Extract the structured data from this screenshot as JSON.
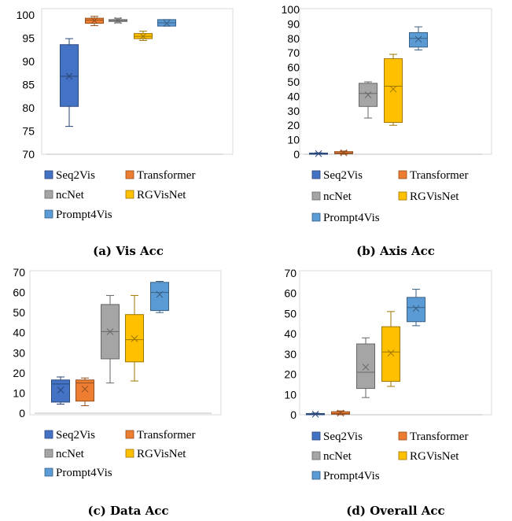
{
  "colors": {
    "Seq2Vis": "#4472c4",
    "Transformer": "#ed7d31",
    "ncNet": "#a5a5a5",
    "RGVisNet": "#ffc000",
    "Prompt4Vis": "#5b9bd5"
  },
  "chart_data": [
    {
      "type": "box",
      "caption": "(a) Vis Acc",
      "ylim": [
        70,
        100
      ],
      "yticks": [
        "70",
        "75",
        "80",
        "85",
        "90",
        "95",
        "100"
      ],
      "legend": [
        "Seq2Vis",
        "Transformer",
        "ncNet",
        "RGVisNet",
        "Prompt4Vis"
      ],
      "series": [
        {
          "name": "Seq2Vis",
          "min": 76,
          "q1": 80.3,
          "median": 86.8,
          "mean": 86.8,
          "q3": 93.6,
          "max": 94.9
        },
        {
          "name": "Transformer",
          "min": 97.7,
          "q1": 98.2,
          "median": 98.9,
          "mean": 98.8,
          "q3": 99.3,
          "max": 99.7
        },
        {
          "name": "ncNet",
          "min": 98.3,
          "q1": 98.6,
          "median": 98.8,
          "mean": 98.8,
          "q3": 99.0,
          "max": 99.3
        },
        {
          "name": "RGVisNet",
          "min": 94.5,
          "q1": 94.9,
          "median": 95.4,
          "mean": 95.4,
          "q3": 96.0,
          "max": 96.5
        },
        {
          "name": "Prompt4Vis",
          "min": 97.6,
          "q1": 97.6,
          "median": 98.3,
          "mean": 98.2,
          "q3": 99.0,
          "max": 99.0
        }
      ]
    },
    {
      "type": "box",
      "caption": "(b) Axis Acc",
      "ylim": [
        0,
        100
      ],
      "yticks": [
        "0",
        "10",
        "20",
        "30",
        "40",
        "50",
        "60",
        "70",
        "80",
        "90",
        "100"
      ],
      "legend": [
        "Seq2Vis",
        "Transformer",
        "ncNet",
        "RGVisNet",
        "Prompt4Vis"
      ],
      "series": [
        {
          "name": "Seq2Vis",
          "min": 0,
          "q1": 0,
          "median": 0.3,
          "mean": 0.4,
          "q3": 0.8,
          "max": 1.0
        },
        {
          "name": "Transformer",
          "min": 0,
          "q1": 0.4,
          "median": 0.8,
          "mean": 1.0,
          "q3": 1.8,
          "max": 2.2
        },
        {
          "name": "ncNet",
          "min": 25,
          "q1": 33,
          "median": 42,
          "mean": 41,
          "q3": 49,
          "max": 50
        },
        {
          "name": "RGVisNet",
          "min": 20,
          "q1": 22,
          "median": 47,
          "mean": 45,
          "q3": 66,
          "max": 69
        },
        {
          "name": "Prompt4Vis",
          "min": 72,
          "q1": 74,
          "median": 80,
          "mean": 79.5,
          "q3": 84,
          "max": 88
        }
      ]
    },
    {
      "type": "box",
      "caption": "(c) Data Acc",
      "ylim": [
        0,
        70
      ],
      "yticks": [
        "0",
        "10",
        "20",
        "30",
        "40",
        "50",
        "60",
        "70"
      ],
      "legend": [
        "Seq2Vis",
        "Transformer",
        "ncNet",
        "RGVisNet",
        "Prompt4Vis"
      ],
      "series": [
        {
          "name": "Seq2Vis",
          "min": 4.5,
          "q1": 5.5,
          "median": 14.5,
          "mean": 11.5,
          "q3": 16.5,
          "max": 18
        },
        {
          "name": "Transformer",
          "min": 3.7,
          "q1": 6,
          "median": 15,
          "mean": 12,
          "q3": 16.5,
          "max": 17.5
        },
        {
          "name": "ncNet",
          "min": 15,
          "q1": 27,
          "median": 40.5,
          "mean": 40.5,
          "q3": 54,
          "max": 58.5
        },
        {
          "name": "RGVisNet",
          "min": 16,
          "q1": 25.5,
          "median": 36.5,
          "mean": 37,
          "q3": 49,
          "max": 58.5
        },
        {
          "name": "Prompt4Vis",
          "min": 50,
          "q1": 51,
          "median": 60,
          "mean": 59,
          "q3": 65,
          "max": 65.5
        }
      ]
    },
    {
      "type": "box",
      "caption": "(d) Overall Acc",
      "ylim": [
        0,
        70
      ],
      "yticks": [
        "0",
        "10",
        "20",
        "30",
        "40",
        "50",
        "60",
        "70"
      ],
      "legend": [
        "Seq2Vis",
        "Transformer",
        "ncNet",
        "RGVisNet",
        "Prompt4Vis"
      ],
      "series": [
        {
          "name": "Seq2Vis",
          "min": 0,
          "q1": 0,
          "median": 0.2,
          "mean": 0.3,
          "q3": 0.6,
          "max": 0.8
        },
        {
          "name": "Transformer",
          "min": 0,
          "q1": 0.3,
          "median": 0.6,
          "mean": 0.8,
          "q3": 1.5,
          "max": 1.9
        },
        {
          "name": "ncNet",
          "min": 8.5,
          "q1": 13,
          "median": 21,
          "mean": 23.5,
          "q3": 35,
          "max": 38
        },
        {
          "name": "RGVisNet",
          "min": 14,
          "q1": 16.5,
          "median": 31,
          "mean": 30.5,
          "q3": 43.5,
          "max": 51
        },
        {
          "name": "Prompt4Vis",
          "min": 44,
          "q1": 46,
          "median": 53,
          "mean": 52.5,
          "q3": 58,
          "max": 62
        }
      ]
    }
  ]
}
